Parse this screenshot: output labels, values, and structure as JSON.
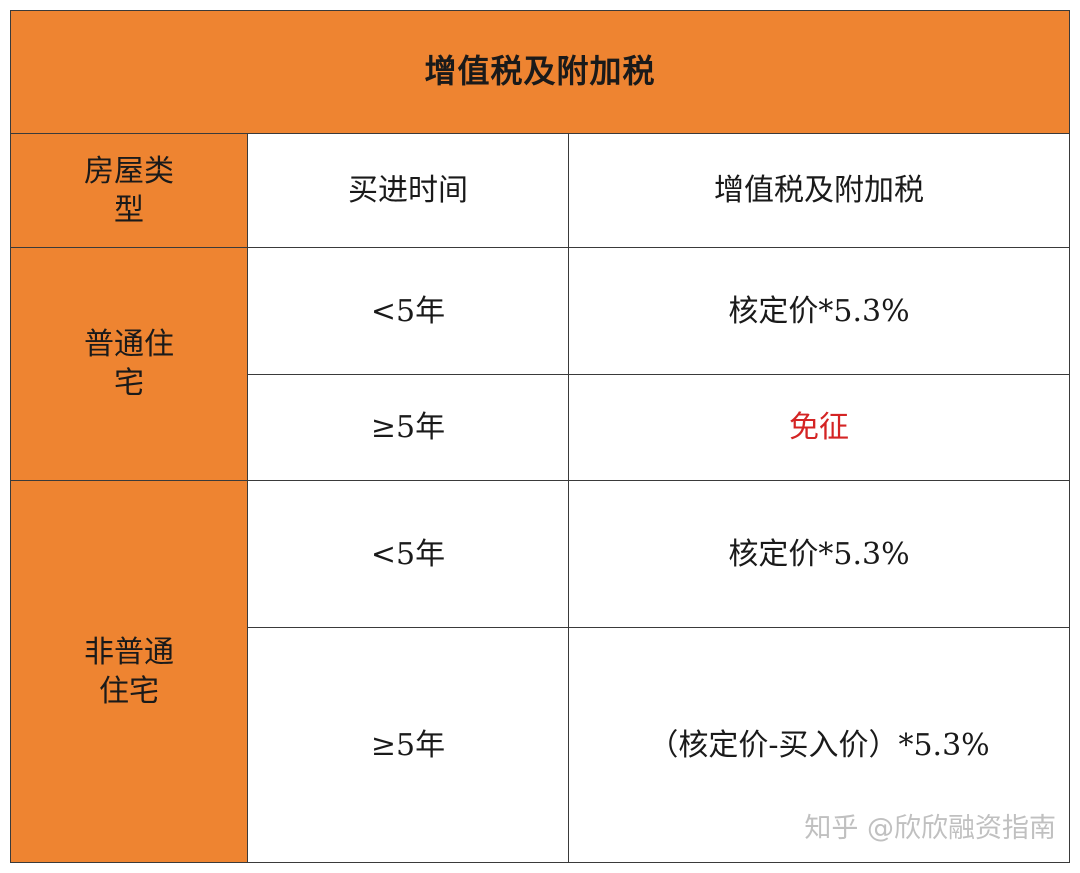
{
  "title": "增值税及附加税",
  "headers": {
    "type": "房屋类型",
    "time": "买进时间",
    "tax": "增值税及附加税"
  },
  "groups": [
    {
      "type": "普通住宅",
      "rows": [
        {
          "time": "<5年",
          "tax": "核定价*5.3%"
        },
        {
          "time": "≥5年",
          "tax": "免征"
        }
      ]
    },
    {
      "type": "非普通住宅",
      "rows": [
        {
          "time": "<5年",
          "tax": "核定价*5.3%"
        },
        {
          "time": "≥5年",
          "tax": "（核定价-买入价）*5.3%"
        }
      ]
    }
  ],
  "watermark": "知乎 @欣欣融资指南",
  "colors": {
    "header_fill": "#ee8431",
    "exempt_text": "#d42424",
    "border": "#3a3a3a"
  }
}
